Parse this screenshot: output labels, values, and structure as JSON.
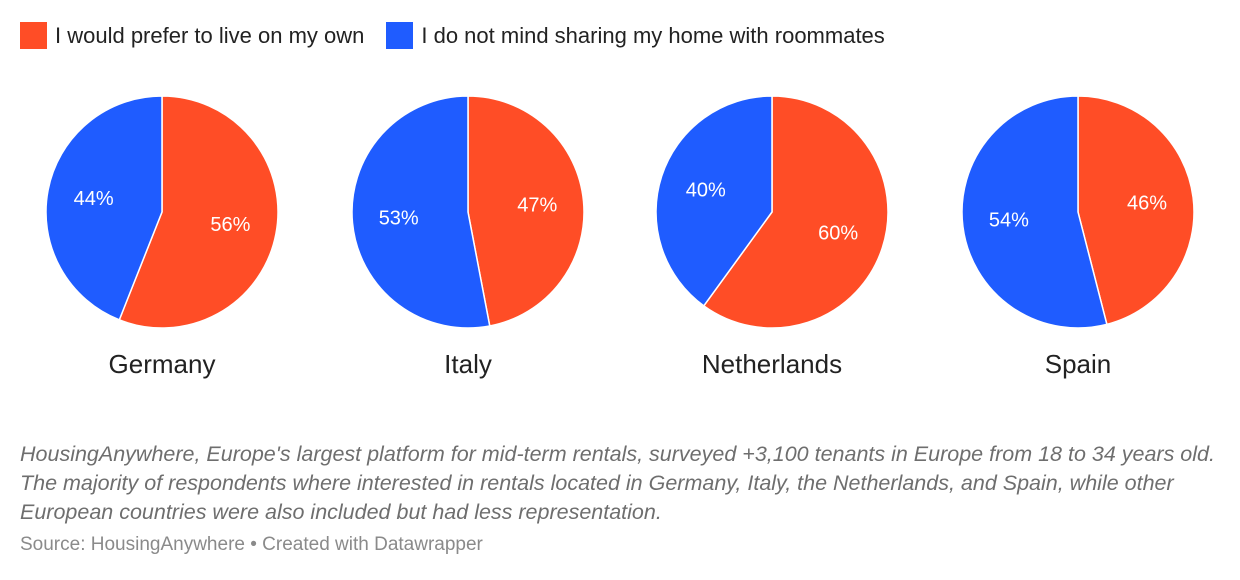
{
  "legend": [
    {
      "label": "I would prefer to live on my own",
      "color": "#ff4d26"
    },
    {
      "label": "I do not mind sharing my home with roommates",
      "color": "#1f5cff"
    }
  ],
  "chart_data": {
    "type": "pie",
    "series_names": [
      "I would prefer to live on my own",
      "I do not mind sharing my home with roommates"
    ],
    "colors": [
      "#ff4d26",
      "#1f5cff"
    ],
    "pies": [
      {
        "name": "Germany",
        "values": [
          56,
          44
        ],
        "labels": [
          "56%",
          "44%"
        ]
      },
      {
        "name": "Italy",
        "values": [
          47,
          53
        ],
        "labels": [
          "47%",
          "53%"
        ]
      },
      {
        "name": "Netherlands",
        "values": [
          60,
          40
        ],
        "labels": [
          "60%",
          "40%"
        ]
      },
      {
        "name": "Spain",
        "values": [
          46,
          54
        ],
        "labels": [
          "46%",
          "54%"
        ]
      }
    ]
  },
  "footer": {
    "note": "HousingAnywhere, Europe's largest platform for mid-term rentals, surveyed +3,100 tenants in Europe from 18 to 34 years old. The majority of respondents where interested in rentals located in Germany, Italy, the Netherlands, and Spain, while other European countries were also included but had less representation.",
    "source": "Source: HousingAnywhere • Created with Datawrapper"
  }
}
